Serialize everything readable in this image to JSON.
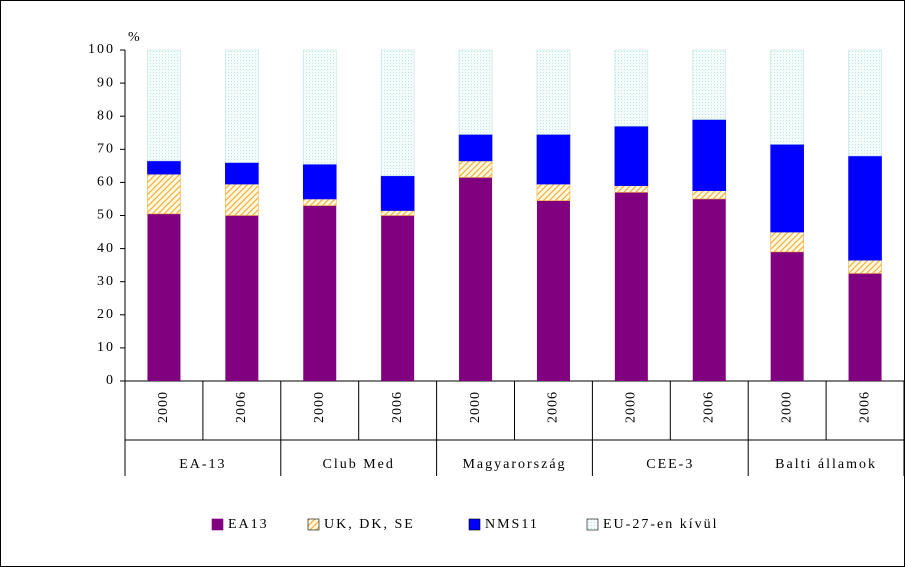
{
  "chart_data": {
    "type": "stacked_bar",
    "y_label": "%",
    "categories": [
      "2000",
      "2006",
      "2000",
      "2006",
      "2000",
      "2006",
      "2000",
      "2006",
      "2000",
      "2006"
    ],
    "groups": [
      "EA-13",
      "Club Med",
      "Magyarország",
      "CEE-3",
      "Balti államok"
    ],
    "series": [
      {
        "name": "EA13",
        "color": "#800080",
        "values": [
          50.5,
          50,
          53,
          50,
          61.5,
          54.5,
          57,
          55,
          39,
          32.5
        ]
      },
      {
        "name": "UK, DK, SE",
        "color": "#f0b040",
        "pattern": "hatch",
        "values": [
          12,
          9.5,
          2,
          1.5,
          5,
          5,
          2,
          2.5,
          6,
          4
        ]
      },
      {
        "name": "NMS11",
        "color": "#0000ff",
        "values": [
          4,
          6.5,
          10.5,
          10.5,
          8,
          15,
          18,
          21.5,
          26.5,
          31.5
        ]
      },
      {
        "name": "EU-27-en kívül",
        "color": "#bfe3e3",
        "pattern": "dots",
        "values": [
          33.5,
          34,
          34.5,
          38,
          25.5,
          25.5,
          23,
          21,
          28.5,
          32
        ]
      }
    ],
    "ylim": [
      0,
      100
    ],
    "yticks": [
      0,
      10,
      20,
      30,
      40,
      50,
      60,
      70,
      80,
      90,
      100
    ],
    "legend": "bottom"
  }
}
